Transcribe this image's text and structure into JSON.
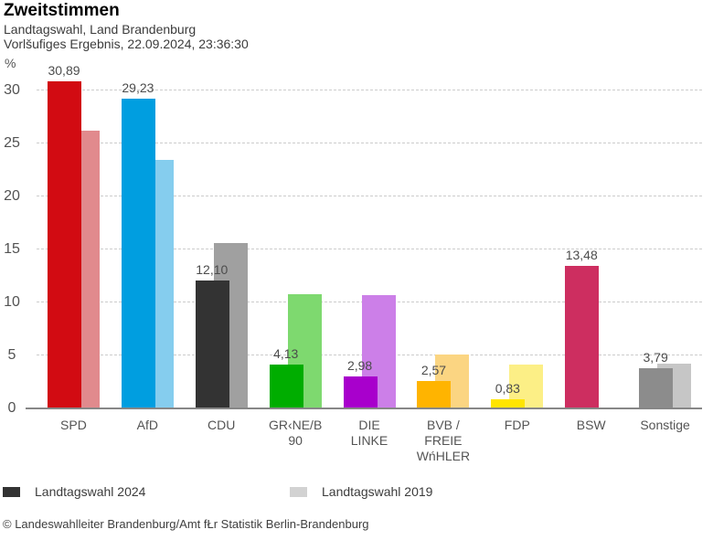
{
  "header": {
    "title": "Zweitstimmen",
    "subtitle1": "Landtagswahl, Land Brandenburg",
    "subtitle2": "Vorlšufiges Ergebnis, 22.09.2024, 23:36:30"
  },
  "axis": {
    "unit_label": "%",
    "y_ticks": [
      0,
      5,
      10,
      15,
      20,
      25,
      30
    ],
    "gridline_ticks": [
      5,
      10,
      15,
      20,
      25,
      30
    ]
  },
  "chart_data": {
    "type": "bar",
    "title": "Zweitstimmen",
    "ylabel": "%",
    "ylim": [
      0,
      31.7
    ],
    "grid": true,
    "legend_position": "bottom",
    "categories": [
      "SPD",
      "AfD",
      "CDU",
      "GR‹NE/B 90",
      "DIE LINKE",
      "BVB / FREIE WńHLER",
      "FDP",
      "BSW",
      "Sonstige"
    ],
    "series": [
      {
        "name": "Landtagswahl 2024",
        "values": [
          30.89,
          29.23,
          12.1,
          4.13,
          2.98,
          2.57,
          0.83,
          13.48,
          3.79
        ]
      },
      {
        "name": "Landtagswahl 2019",
        "values": [
          26.2,
          23.5,
          15.6,
          10.8,
          10.7,
          5.05,
          4.1,
          null,
          4.2
        ]
      }
    ],
    "parties": [
      {
        "id": "spd",
        "label_lines": [
          "SPD"
        ],
        "value_label": "30,89",
        "v2024": 30.89,
        "v2019": 26.2,
        "color2024": "#d20b12",
        "color2019": "#e18a8d"
      },
      {
        "id": "afd",
        "label_lines": [
          "AfD"
        ],
        "value_label": "29,23",
        "v2024": 29.23,
        "v2019": 23.5,
        "color2024": "#009ee0",
        "color2019": "#85cdee"
      },
      {
        "id": "cdu",
        "label_lines": [
          "CDU"
        ],
        "value_label": "12,10",
        "v2024": 12.1,
        "v2019": 15.6,
        "color2024": "#333333",
        "color2019": "#a0a0a0"
      },
      {
        "id": "gruene",
        "label_lines": [
          "GR‹NE/B",
          "90"
        ],
        "value_label": "4,13",
        "v2024": 4.13,
        "v2019": 10.8,
        "color2024": "#00ad00",
        "color2019": "#7ed96f"
      },
      {
        "id": "linke",
        "label_lines": [
          "DIE",
          "LINKE"
        ],
        "value_label": "2,98",
        "v2024": 2.98,
        "v2019": 10.7,
        "color2024": "#a800cc",
        "color2019": "#cc7fe8"
      },
      {
        "id": "bvb",
        "label_lines": [
          "BVB /",
          "FREIE",
          "WńHLER"
        ],
        "value_label": "2,57",
        "v2024": 2.57,
        "v2019": 5.05,
        "color2024": "#ffb400",
        "color2019": "#fbd582"
      },
      {
        "id": "fdp",
        "label_lines": [
          "FDP"
        ],
        "value_label": "0,83",
        "v2024": 0.83,
        "v2019": 4.1,
        "color2024": "#ffe500",
        "color2019": "#fcef86"
      },
      {
        "id": "bsw",
        "label_lines": [
          "BSW"
        ],
        "value_label": "13,48",
        "v2024": 13.48,
        "v2019": null,
        "color2024": "#cd2e60",
        "color2019": null
      },
      {
        "id": "sonstige",
        "label_lines": [
          "Sonstige"
        ],
        "value_label": "3,79",
        "v2024": 3.79,
        "v2019": 4.2,
        "color2024": "#8c8c8c",
        "color2019": "#c6c6c6"
      }
    ]
  },
  "legend": {
    "items": [
      {
        "label": "Landtagswahl 2024",
        "color": "#333333"
      },
      {
        "label": "Landtagswahl 2019",
        "color": "#d2d2d2"
      }
    ]
  },
  "footer": {
    "credit": "© Landeswahlleiter Brandenburg/Amt fŁr Statistik Berlin-Brandenburg"
  },
  "colors": {
    "gridline": "#cccccc",
    "axis_line": "#878787",
    "value_label_text": "#4c4c4c"
  }
}
